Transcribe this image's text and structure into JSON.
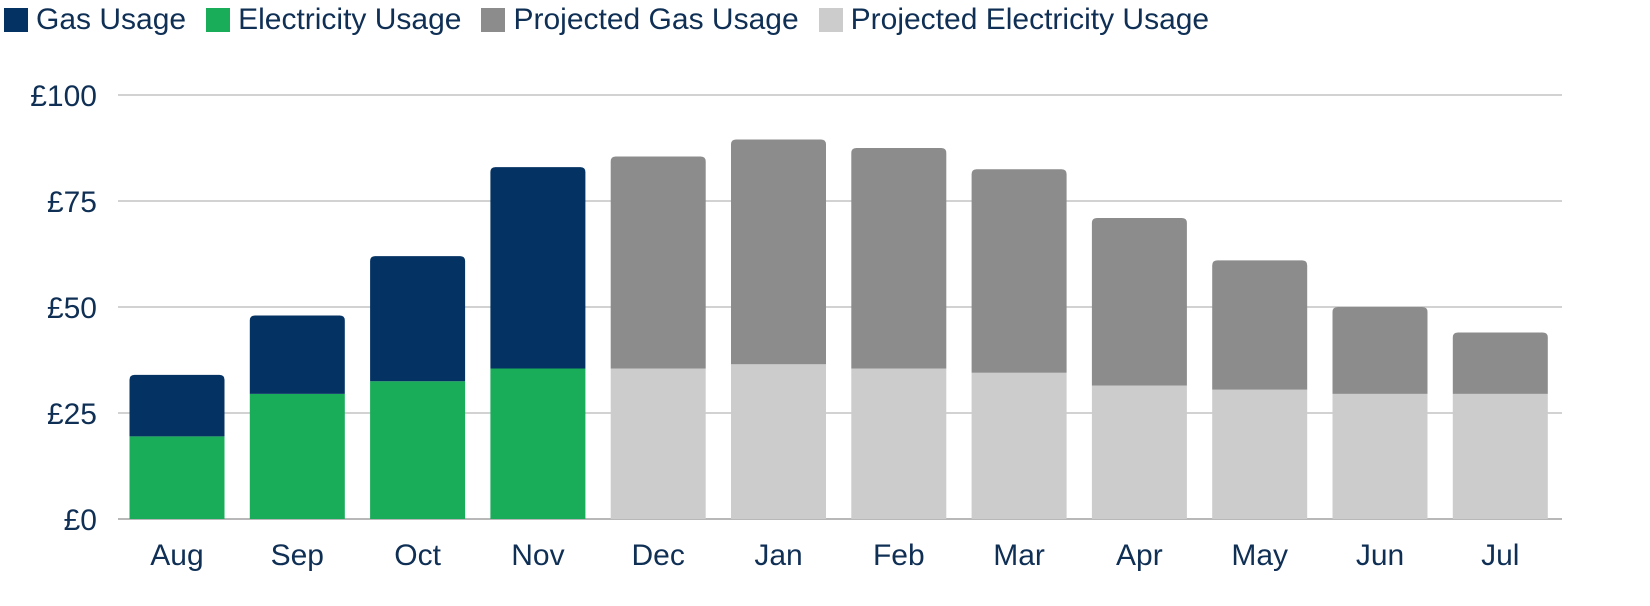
{
  "legend": [
    {
      "label": "Gas Usage",
      "color": "#043263"
    },
    {
      "label": "Electricity Usage",
      "color": "#19ac59"
    },
    {
      "label": "Projected Gas Usage",
      "color": "#8c8c8c"
    },
    {
      "label": "Projected Electricity Usage",
      "color": "#cccccc"
    }
  ],
  "chart_data": {
    "type": "bar",
    "stacked": true,
    "categories": [
      "Aug",
      "Sep",
      "Oct",
      "Nov",
      "Dec",
      "Jan",
      "Feb",
      "Mar",
      "Apr",
      "May",
      "Jun",
      "Jul"
    ],
    "series": [
      {
        "name": "Electricity Usage",
        "color": "#19ac59",
        "values": [
          19.5,
          29.5,
          32.5,
          35.5,
          null,
          null,
          null,
          null,
          null,
          null,
          null,
          null
        ]
      },
      {
        "name": "Gas Usage",
        "color": "#043263",
        "values": [
          14.5,
          18.5,
          29.5,
          47.5,
          null,
          null,
          null,
          null,
          null,
          null,
          null,
          null
        ]
      },
      {
        "name": "Projected Electricity Usage",
        "color": "#cccccc",
        "values": [
          null,
          null,
          null,
          null,
          35.5,
          36.5,
          35.5,
          34.5,
          31.5,
          30.5,
          29.5,
          29.5
        ]
      },
      {
        "name": "Projected Gas Usage",
        "color": "#8c8c8c",
        "values": [
          null,
          null,
          null,
          null,
          50,
          53,
          52,
          48,
          39.5,
          30.5,
          20.5,
          14.5
        ]
      }
    ],
    "y_ticks": [
      "£0",
      "£25",
      "£50",
      "£75",
      "£100"
    ],
    "ylim": [
      0,
      100
    ],
    "grid": true,
    "legend_position": "top-left"
  }
}
